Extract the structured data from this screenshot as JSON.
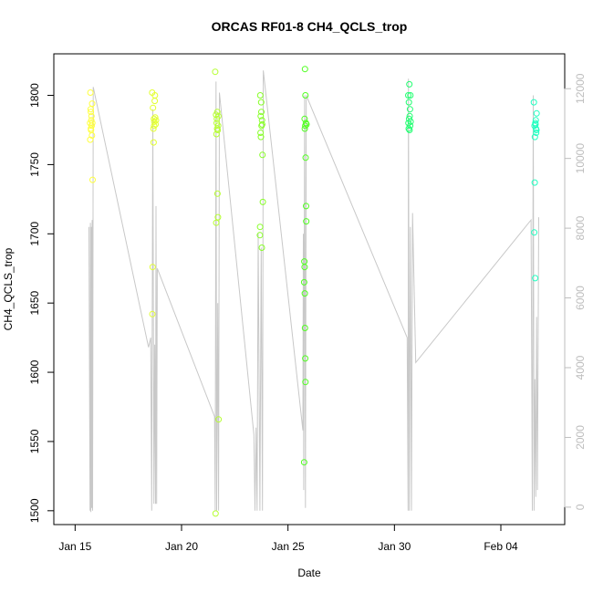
{
  "chart_data": {
    "type": "scatter",
    "title": "ORCAS RF01-8 CH4_QCLS_trop",
    "xlabel": "Date",
    "ylabel": "CH4_QCLS_trop",
    "x_ticks": [
      "Jan 15",
      "Jan 20",
      "Jan 25",
      "Jan 30",
      "Feb 04"
    ],
    "xlim": [
      "2016-01-14",
      "2016-02-07"
    ],
    "ylim": [
      1490,
      1830
    ],
    "y_ticks": [
      1500,
      1550,
      1600,
      1650,
      1700,
      1750,
      1800
    ],
    "y2lim": [
      -500,
      13000
    ],
    "y2_ticks": [
      0,
      2000,
      4000,
      6000,
      8000,
      10000,
      12000
    ],
    "grid": false,
    "series": [
      {
        "color": "#ffff40",
        "date": "2016-01-15",
        "points": [
          [
            15.72,
            1802
          ],
          [
            15.7,
            1780
          ],
          [
            15.74,
            1788
          ],
          [
            15.75,
            1775
          ],
          [
            15.71,
            1768
          ],
          [
            15.78,
            1778
          ],
          [
            15.76,
            1782
          ],
          [
            15.73,
            1790
          ],
          [
            15.8,
            1794
          ],
          [
            15.77,
            1785
          ],
          [
            15.79,
            1771
          ],
          [
            15.82,
            1739
          ],
          [
            15.74,
            1776
          ],
          [
            15.81,
            1780
          ]
        ]
      },
      {
        "color": "#e3ff30",
        "date": "2016-01-18",
        "points": [
          [
            18.62,
            1802
          ],
          [
            18.75,
            1800
          ],
          [
            18.66,
            1791
          ],
          [
            18.7,
            1783
          ],
          [
            18.68,
            1776
          ],
          [
            18.72,
            1781
          ],
          [
            18.78,
            1779
          ],
          [
            18.74,
            1796
          ],
          [
            18.69,
            1766
          ],
          [
            18.64,
            1676
          ],
          [
            18.63,
            1642
          ],
          [
            18.76,
            1784
          ],
          [
            18.71,
            1778
          ],
          [
            18.8,
            1782
          ]
        ]
      },
      {
        "color": "#b6ff30",
        "date": "2016-01-21",
        "points": [
          [
            21.58,
            1817
          ],
          [
            21.62,
            1786
          ],
          [
            21.65,
            1780
          ],
          [
            21.68,
            1788
          ],
          [
            21.7,
            1775
          ],
          [
            21.64,
            1772
          ],
          [
            21.66,
            1783
          ],
          [
            21.72,
            1778
          ],
          [
            21.69,
            1729
          ],
          [
            21.71,
            1712
          ],
          [
            21.63,
            1708
          ],
          [
            21.67,
            1776
          ],
          [
            21.74,
            1566
          ],
          [
            21.6,
            1498
          ],
          [
            21.73,
            1785
          ]
        ]
      },
      {
        "color": "#88ff28",
        "date": "2016-01-23",
        "points": [
          [
            23.7,
            1800
          ],
          [
            23.74,
            1795
          ],
          [
            23.72,
            1785
          ],
          [
            23.76,
            1778
          ],
          [
            23.71,
            1773
          ],
          [
            23.78,
            1782
          ],
          [
            23.73,
            1770
          ],
          [
            23.8,
            1757
          ],
          [
            23.82,
            1723
          ],
          [
            23.69,
            1705
          ],
          [
            23.68,
            1699
          ],
          [
            23.77,
            1690
          ],
          [
            23.75,
            1788
          ],
          [
            23.79,
            1779
          ]
        ]
      },
      {
        "color": "#50ff20",
        "date": "2016-01-25",
        "points": [
          [
            25.8,
            1819
          ],
          [
            25.82,
            1800
          ],
          [
            25.78,
            1783
          ],
          [
            25.84,
            1780
          ],
          [
            25.79,
            1776
          ],
          [
            25.81,
            1778
          ],
          [
            25.83,
            1755
          ],
          [
            25.85,
            1720
          ],
          [
            25.86,
            1709
          ],
          [
            25.77,
            1680
          ],
          [
            25.78,
            1676
          ],
          [
            25.76,
            1665
          ],
          [
            25.79,
            1657
          ],
          [
            25.8,
            1632
          ],
          [
            25.81,
            1610
          ],
          [
            25.82,
            1593
          ],
          [
            25.76,
            1535
          ],
          [
            25.87,
            1779
          ]
        ]
      },
      {
        "color": "#20ff70",
        "date": "2016-01-30",
        "points": [
          [
            30.65,
            1800
          ],
          [
            30.7,
            1808
          ],
          [
            30.75,
            1800
          ],
          [
            30.68,
            1795
          ],
          [
            30.72,
            1785
          ],
          [
            30.66,
            1780
          ],
          [
            30.74,
            1778
          ],
          [
            30.71,
            1775
          ],
          [
            30.69,
            1783
          ],
          [
            30.73,
            1790
          ],
          [
            30.67,
            1776
          ],
          [
            30.76,
            1781
          ]
        ]
      },
      {
        "color": "#20ffc0",
        "date": "2016-02-05",
        "points": [
          [
            36.55,
            1795
          ],
          [
            36.62,
            1780
          ],
          [
            36.65,
            1776
          ],
          [
            36.6,
            1770
          ],
          [
            36.58,
            1778
          ],
          [
            36.66,
            1773
          ],
          [
            36.68,
            1787
          ],
          [
            36.64,
            1782
          ],
          [
            36.59,
            1737
          ],
          [
            36.57,
            1701
          ],
          [
            36.61,
            1668
          ],
          [
            36.63,
            1779
          ],
          [
            36.67,
            1775
          ]
        ]
      }
    ],
    "altitude_line": {
      "color": "#c8c8c8",
      "points": [
        [
          15.65,
          1705
        ],
        [
          15.7,
          1500
        ],
        [
          15.72,
          1708
        ],
        [
          15.74,
          1499
        ],
        [
          15.76,
          1705
        ],
        [
          15.78,
          1502
        ],
        [
          15.8,
          1710
        ],
        [
          15.82,
          1500
        ],
        [
          15.85,
          1806
        ],
        [
          18.45,
          1618
        ],
        [
          18.55,
          1625
        ],
        [
          18.6,
          1500
        ],
        [
          18.65,
          1790
        ],
        [
          18.7,
          1505
        ],
        [
          18.74,
          1620
        ],
        [
          18.78,
          1505
        ],
        [
          18.8,
          1720
        ],
        [
          18.83,
          1505
        ],
        [
          18.86,
          1675
        ],
        [
          21.55,
          1568
        ],
        [
          21.58,
          1500
        ],
        [
          21.62,
          1810
        ],
        [
          21.65,
          1500
        ],
        [
          21.7,
          1650
        ],
        [
          21.74,
          1500
        ],
        [
          21.78,
          1802
        ],
        [
          23.4,
          1555
        ],
        [
          23.45,
          1500
        ],
        [
          23.5,
          1560
        ],
        [
          23.55,
          1500
        ],
        [
          23.6,
          1700
        ],
        [
          23.68,
          1500
        ],
        [
          23.74,
          1690
        ],
        [
          23.8,
          1500
        ],
        [
          23.84,
          1818
        ],
        [
          25.7,
          1558
        ],
        [
          25.72,
          1700
        ],
        [
          25.74,
          1515
        ],
        [
          25.78,
          1800
        ],
        [
          25.82,
          1502
        ],
        [
          25.86,
          1800
        ],
        [
          30.6,
          1625
        ],
        [
          30.64,
          1500
        ],
        [
          30.66,
          1812
        ],
        [
          30.7,
          1500
        ],
        [
          30.75,
          1705
        ],
        [
          30.8,
          1500
        ],
        [
          30.85,
          1715
        ],
        [
          31.0,
          1607
        ],
        [
          36.42,
          1710
        ],
        [
          36.48,
          1500
        ],
        [
          36.52,
          1800
        ],
        [
          36.56,
          1500
        ],
        [
          36.6,
          1595
        ],
        [
          36.64,
          1510
        ],
        [
          36.68,
          1640
        ],
        [
          36.72,
          1515
        ],
        [
          36.78,
          1712
        ]
      ]
    }
  }
}
